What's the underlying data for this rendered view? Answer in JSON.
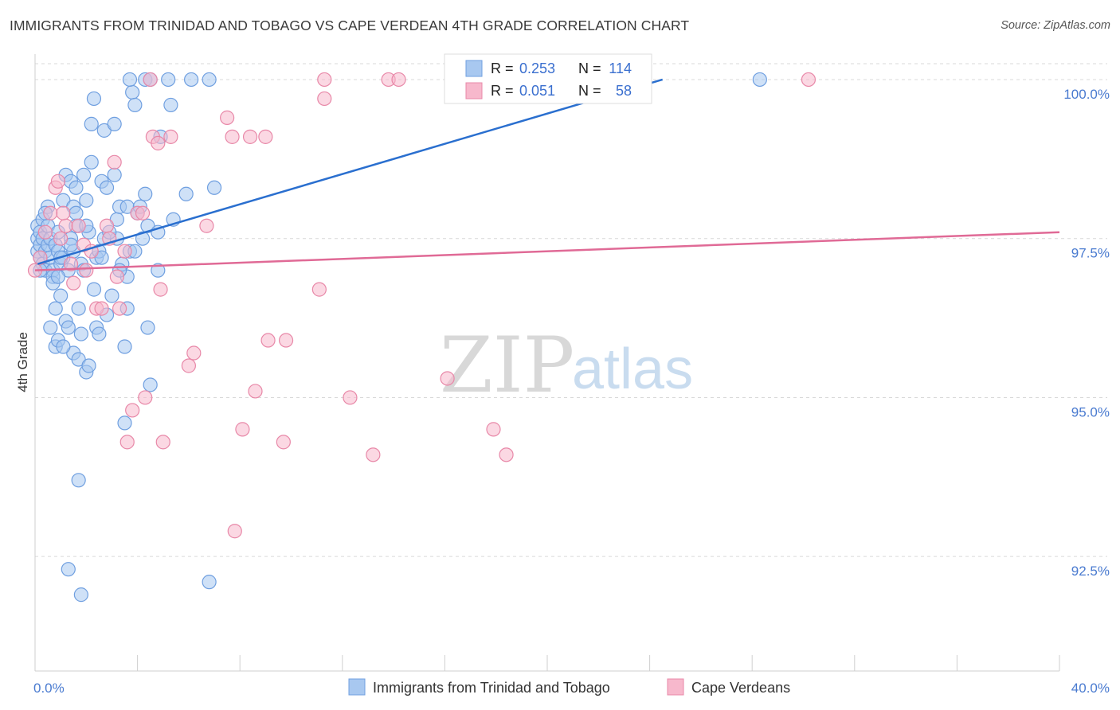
{
  "header": {
    "title": "IMMIGRANTS FROM TRINIDAD AND TOBAGO VS CAPE VERDEAN 4TH GRADE CORRELATION CHART",
    "source": "Source: ZipAtlas.com"
  },
  "watermark": {
    "zip": "ZIP",
    "atlas": "atlas"
  },
  "stats": {
    "r_label": "R =",
    "n_label": "N =",
    "rows": [
      {
        "r": "0.253",
        "n": "114",
        "color": "#a8c8f0",
        "border": "#6f9fe0"
      },
      {
        "r": "0.051",
        "n": "58",
        "color": "#f7b8cc",
        "border": "#e888a8"
      }
    ]
  },
  "legend": {
    "items": [
      {
        "label": "Immigrants from Trinidad and Tobago",
        "color": "#a8c8f0",
        "border": "#6f9fe0"
      },
      {
        "label": "Cape Verdeans",
        "color": "#f7b8cc",
        "border": "#e888a8"
      }
    ]
  },
  "chart_data": {
    "type": "scatter",
    "title": "IMMIGRANTS FROM TRINIDAD AND TOBAGO VS CAPE VERDEAN 4TH GRADE CORRELATION CHART",
    "xlabel": "",
    "ylabel": "4th Grade",
    "xlim": [
      0,
      40
    ],
    "ylim": [
      90.7,
      100.4
    ],
    "x_tick_labels": [
      {
        "value": 0,
        "label": "0.0%"
      },
      {
        "value": 40,
        "label": "40.0%"
      }
    ],
    "x_minor_ticks": [
      4,
      8,
      12,
      16,
      20,
      24,
      28,
      32,
      36
    ],
    "y_ticks": [
      {
        "value": 100,
        "label": "100.0%"
      },
      {
        "value": 97.5,
        "label": "97.5%"
      },
      {
        "value": 95,
        "label": "95.0%"
      },
      {
        "value": 92.5,
        "label": "92.5%"
      }
    ],
    "grid": "horizontal dashed",
    "legend_position": "bottom-center",
    "series": [
      {
        "name": "Immigrants from Trinidad and Tobago",
        "color": "#6f9fe0",
        "fill": "#a8c8f0",
        "trend_color": "#2a6fcf",
        "trend": {
          "x": [
            0.1,
            24.5
          ],
          "y": [
            97.1,
            100.0
          ]
        },
        "points": [
          [
            0.1,
            97.3
          ],
          [
            0.1,
            97.5
          ],
          [
            0.1,
            97.7
          ],
          [
            0.2,
            97.4
          ],
          [
            0.2,
            97.6
          ],
          [
            0.2,
            97.2
          ],
          [
            0.3,
            97.8
          ],
          [
            0.3,
            97.1
          ],
          [
            0.3,
            97.5
          ],
          [
            0.4,
            97.3
          ],
          [
            0.4,
            97.0
          ],
          [
            0.5,
            97.7
          ],
          [
            0.5,
            97.4
          ],
          [
            0.6,
            97.2
          ],
          [
            0.6,
            97.5
          ],
          [
            0.6,
            96.1
          ],
          [
            0.7,
            97.0
          ],
          [
            0.7,
            96.9
          ],
          [
            0.8,
            97.4
          ],
          [
            0.8,
            96.4
          ],
          [
            0.8,
            95.8
          ],
          [
            0.9,
            97.6
          ],
          [
            0.9,
            97.3
          ],
          [
            0.9,
            95.9
          ],
          [
            1.0,
            97.1
          ],
          [
            1.0,
            96.6
          ],
          [
            1.1,
            98.1
          ],
          [
            1.1,
            97.2
          ],
          [
            1.2,
            98.5
          ],
          [
            1.2,
            96.2
          ],
          [
            1.3,
            97.0
          ],
          [
            1.3,
            96.1
          ],
          [
            1.3,
            92.3
          ],
          [
            1.4,
            97.5
          ],
          [
            1.4,
            98.4
          ],
          [
            1.5,
            97.3
          ],
          [
            1.5,
            95.7
          ],
          [
            1.6,
            98.3
          ],
          [
            1.6,
            97.7
          ],
          [
            1.7,
            96.4
          ],
          [
            1.7,
            95.6
          ],
          [
            1.7,
            93.7
          ],
          [
            1.8,
            97.1
          ],
          [
            1.8,
            96.0
          ],
          [
            1.8,
            91.9
          ],
          [
            1.9,
            97.0
          ],
          [
            2.0,
            98.1
          ],
          [
            2.0,
            95.4
          ],
          [
            2.1,
            97.6
          ],
          [
            2.1,
            95.5
          ],
          [
            2.2,
            98.7
          ],
          [
            2.2,
            99.3
          ],
          [
            2.3,
            99.7
          ],
          [
            2.4,
            97.2
          ],
          [
            2.4,
            96.1
          ],
          [
            2.5,
            97.3
          ],
          [
            2.5,
            96.0
          ],
          [
            2.6,
            98.4
          ],
          [
            2.7,
            99.2
          ],
          [
            2.7,
            97.5
          ],
          [
            2.8,
            98.3
          ],
          [
            2.8,
            96.3
          ],
          [
            3.1,
            98.5
          ],
          [
            3.1,
            99.3
          ],
          [
            3.2,
            97.5
          ],
          [
            3.2,
            97.8
          ],
          [
            3.3,
            98.0
          ],
          [
            3.4,
            97.1
          ],
          [
            3.5,
            95.8
          ],
          [
            3.5,
            94.6
          ],
          [
            3.6,
            98.0
          ],
          [
            3.6,
            96.4
          ],
          [
            3.6,
            96.9
          ],
          [
            3.7,
            97.3
          ],
          [
            3.8,
            99.8
          ],
          [
            3.9,
            99.6
          ],
          [
            4.0,
            97.9
          ],
          [
            4.1,
            98.0
          ],
          [
            4.2,
            97.5
          ],
          [
            4.3,
            98.2
          ],
          [
            4.3,
            100.0
          ],
          [
            4.4,
            97.7
          ],
          [
            4.4,
            96.1
          ],
          [
            4.5,
            100.0
          ],
          [
            4.5,
            95.2
          ],
          [
            4.8,
            97.6
          ],
          [
            4.8,
            97.0
          ],
          [
            4.9,
            99.1
          ],
          [
            5.2,
            100.0
          ],
          [
            5.3,
            99.6
          ],
          [
            5.4,
            97.8
          ],
          [
            5.9,
            98.2
          ],
          [
            6.1,
            100.0
          ],
          [
            6.8,
            100.0
          ],
          [
            6.8,
            92.1
          ],
          [
            7.0,
            98.3
          ],
          [
            3.7,
            100.0
          ],
          [
            28.3,
            100.0
          ],
          [
            0.5,
            98.0
          ],
          [
            0.7,
            96.8
          ],
          [
            1.1,
            95.8
          ],
          [
            1.4,
            97.4
          ],
          [
            2.0,
            97.7
          ],
          [
            2.6,
            97.2
          ],
          [
            3.0,
            96.6
          ],
          [
            3.9,
            97.3
          ],
          [
            0.4,
            97.9
          ],
          [
            1.0,
            97.2
          ],
          [
            1.5,
            98.0
          ],
          [
            2.3,
            96.7
          ],
          [
            3.3,
            97.0
          ],
          [
            1.9,
            98.5
          ],
          [
            0.2,
            97.0
          ],
          [
            0.9,
            96.9
          ],
          [
            1.6,
            97.9
          ],
          [
            2.9,
            97.6
          ]
        ]
      },
      {
        "name": "Cape Verdeans",
        "color": "#e888a8",
        "fill": "#f7b8cc",
        "trend_color": "#e06a96",
        "trend": {
          "x": [
            0,
            40
          ],
          "y": [
            97.0,
            97.6
          ]
        },
        "points": [
          [
            0.0,
            97.0
          ],
          [
            0.2,
            97.2
          ],
          [
            0.4,
            97.6
          ],
          [
            0.6,
            97.9
          ],
          [
            0.8,
            98.3
          ],
          [
            0.9,
            98.4
          ],
          [
            1.0,
            97.5
          ],
          [
            1.2,
            97.7
          ],
          [
            1.4,
            97.1
          ],
          [
            1.5,
            96.8
          ],
          [
            1.7,
            97.7
          ],
          [
            1.9,
            97.4
          ],
          [
            2.0,
            97.0
          ],
          [
            2.2,
            97.3
          ],
          [
            2.4,
            96.4
          ],
          [
            2.6,
            96.4
          ],
          [
            2.8,
            97.7
          ],
          [
            2.9,
            97.5
          ],
          [
            3.1,
            98.7
          ],
          [
            3.2,
            96.9
          ],
          [
            3.3,
            96.4
          ],
          [
            3.5,
            97.3
          ],
          [
            3.6,
            94.3
          ],
          [
            3.8,
            94.8
          ],
          [
            4.0,
            97.9
          ],
          [
            4.2,
            97.9
          ],
          [
            4.3,
            95.0
          ],
          [
            4.5,
            100.0
          ],
          [
            4.6,
            99.1
          ],
          [
            4.8,
            99.0
          ],
          [
            4.9,
            96.7
          ],
          [
            5.0,
            94.3
          ],
          [
            5.3,
            99.1
          ],
          [
            6.0,
            95.5
          ],
          [
            6.2,
            95.7
          ],
          [
            6.7,
            97.7
          ],
          [
            7.5,
            99.4
          ],
          [
            7.7,
            99.1
          ],
          [
            7.8,
            92.9
          ],
          [
            8.1,
            94.5
          ],
          [
            8.4,
            99.1
          ],
          [
            8.6,
            95.1
          ],
          [
            9.0,
            99.1
          ],
          [
            9.1,
            95.9
          ],
          [
            9.7,
            94.3
          ],
          [
            9.8,
            95.9
          ],
          [
            11.1,
            96.7
          ],
          [
            11.3,
            100.0
          ],
          [
            11.3,
            99.7
          ],
          [
            12.3,
            95.0
          ],
          [
            13.2,
            94.1
          ],
          [
            13.8,
            100.0
          ],
          [
            14.2,
            100.0
          ],
          [
            16.1,
            95.3
          ],
          [
            17.9,
            94.5
          ],
          [
            18.4,
            94.1
          ],
          [
            30.2,
            100.0
          ],
          [
            1.1,
            97.9
          ]
        ]
      }
    ]
  }
}
